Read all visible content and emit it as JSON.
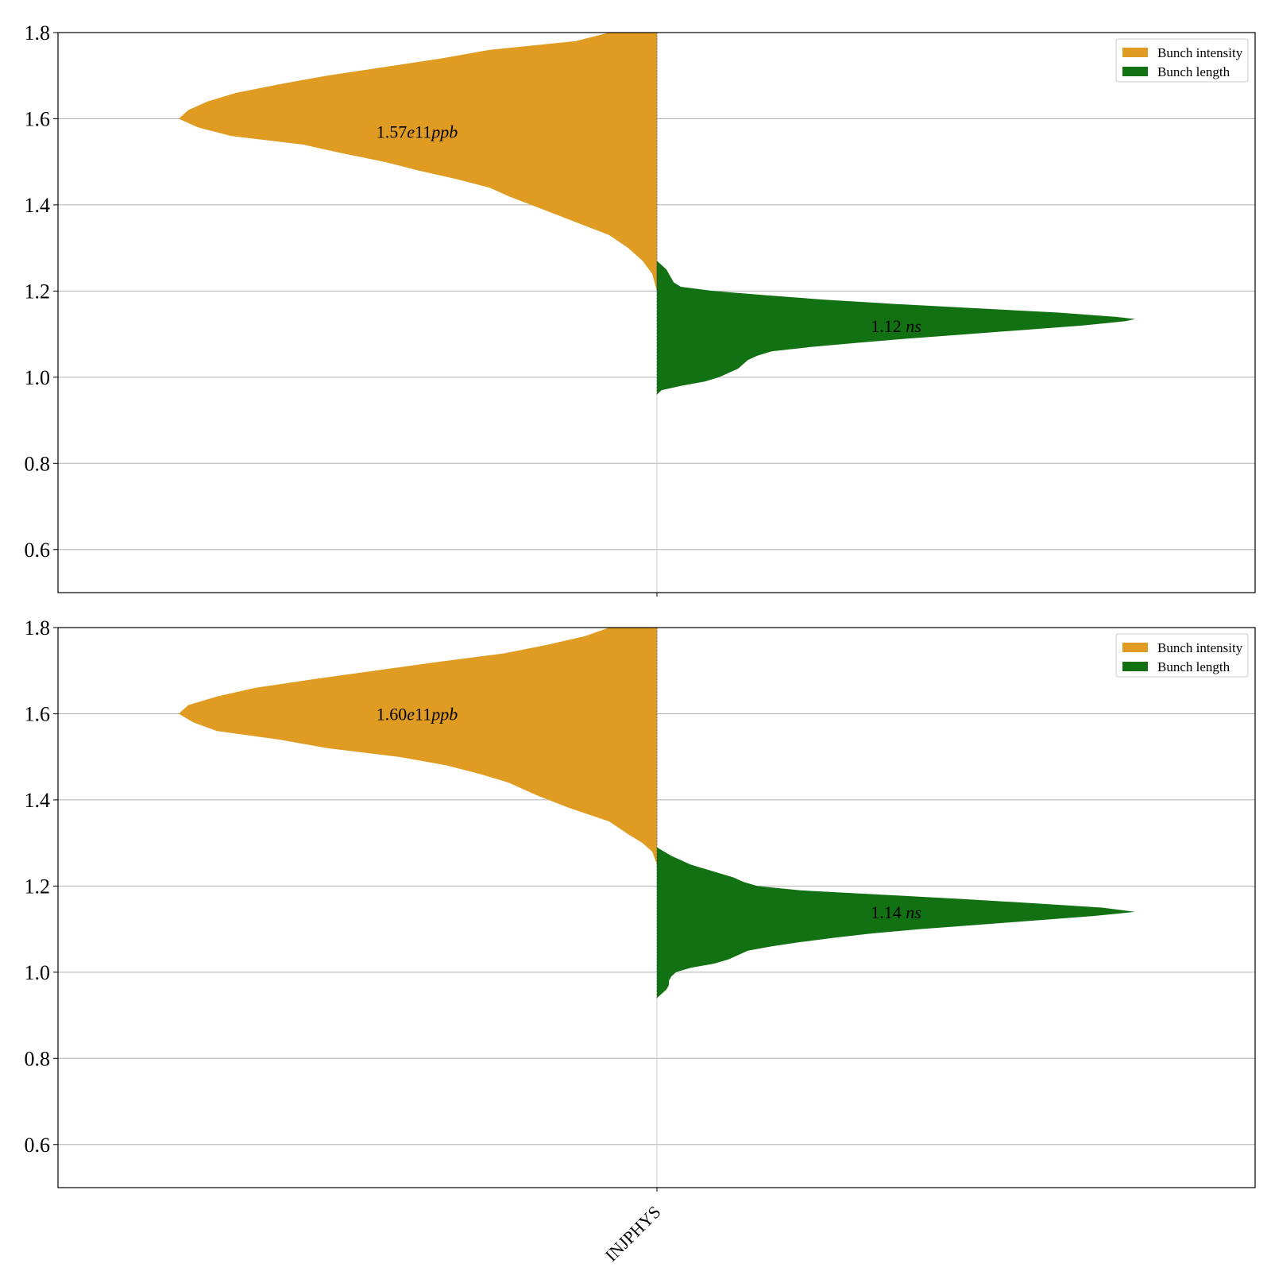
{
  "chart_data": [
    {
      "type": "violin",
      "categories": [
        "INJPHYS"
      ],
      "ylim": [
        0.5,
        1.8
      ],
      "yticks": [
        "0.6",
        "0.8",
        "1.0",
        "1.2",
        "1.4",
        "1.6",
        "1.8"
      ],
      "grid": true,
      "legend": {
        "position": "top-right",
        "entries": [
          "Bunch intensity",
          "Bunch length"
        ]
      },
      "colors": {
        "intensity": "#e09c22",
        "length": "#127112"
      },
      "series": [
        {
          "name": "Bunch intensity",
          "side": "left",
          "annotation": {
            "value": "1.57",
            "exp": "e11",
            "unit": "ppb",
            "y": 1.57
          },
          "profile": [
            [
              1.2,
              0.0
            ],
            [
              1.24,
              0.01
            ],
            [
              1.27,
              0.03
            ],
            [
              1.3,
              0.06
            ],
            [
              1.33,
              0.1
            ],
            [
              1.36,
              0.17
            ],
            [
              1.39,
              0.24
            ],
            [
              1.42,
              0.31
            ],
            [
              1.44,
              0.35
            ],
            [
              1.46,
              0.42
            ],
            [
              1.48,
              0.5
            ],
            [
              1.5,
              0.57
            ],
            [
              1.52,
              0.66
            ],
            [
              1.54,
              0.74
            ],
            [
              1.56,
              0.89
            ],
            [
              1.58,
              0.96
            ],
            [
              1.6,
              1.0
            ],
            [
              1.62,
              0.98
            ],
            [
              1.64,
              0.94
            ],
            [
              1.66,
              0.88
            ],
            [
              1.68,
              0.79
            ],
            [
              1.7,
              0.69
            ],
            [
              1.72,
              0.57
            ],
            [
              1.74,
              0.45
            ],
            [
              1.76,
              0.35
            ],
            [
              1.78,
              0.17
            ],
            [
              1.8,
              0.1
            ]
          ]
        },
        {
          "name": "Bunch length",
          "side": "right",
          "annotation": {
            "value": "1.12",
            "unit": "ns",
            "y": 1.12
          },
          "profile": [
            [
              0.96,
              0.0
            ],
            [
              0.97,
              0.01
            ],
            [
              0.98,
              0.05
            ],
            [
              0.99,
              0.1
            ],
            [
              1.0,
              0.13
            ],
            [
              1.01,
              0.15
            ],
            [
              1.02,
              0.17
            ],
            [
              1.03,
              0.18
            ],
            [
              1.04,
              0.19
            ],
            [
              1.05,
              0.21
            ],
            [
              1.06,
              0.24
            ],
            [
              1.07,
              0.32
            ],
            [
              1.08,
              0.42
            ],
            [
              1.09,
              0.53
            ],
            [
              1.1,
              0.65
            ],
            [
              1.11,
              0.77
            ],
            [
              1.12,
              0.89
            ],
            [
              1.13,
              0.98
            ],
            [
              1.135,
              1.0
            ],
            [
              1.14,
              0.96
            ],
            [
              1.15,
              0.84
            ],
            [
              1.16,
              0.67
            ],
            [
              1.17,
              0.5
            ],
            [
              1.18,
              0.35
            ],
            [
              1.19,
              0.23
            ],
            [
              1.2,
              0.12
            ],
            [
              1.21,
              0.05
            ],
            [
              1.22,
              0.035
            ],
            [
              1.23,
              0.03
            ],
            [
              1.24,
              0.025
            ],
            [
              1.25,
              0.02
            ],
            [
              1.26,
              0.01
            ],
            [
              1.27,
              0.0
            ]
          ]
        }
      ]
    },
    {
      "type": "violin",
      "categories": [
        "INJPHYS"
      ],
      "ylim": [
        0.5,
        1.8
      ],
      "yticks": [
        "0.6",
        "0.8",
        "1.0",
        "1.2",
        "1.4",
        "1.6",
        "1.8"
      ],
      "grid": true,
      "legend": {
        "position": "top-right",
        "entries": [
          "Bunch intensity",
          "Bunch length"
        ]
      },
      "colors": {
        "intensity": "#e09c22",
        "length": "#127112"
      },
      "series": [
        {
          "name": "Bunch intensity",
          "side": "left",
          "annotation": {
            "value": "1.60",
            "exp": "e11",
            "unit": "ppb",
            "y": 1.6
          },
          "profile": [
            [
              1.25,
              0.0
            ],
            [
              1.28,
              0.01
            ],
            [
              1.3,
              0.03
            ],
            [
              1.32,
              0.06
            ],
            [
              1.35,
              0.1
            ],
            [
              1.38,
              0.18
            ],
            [
              1.41,
              0.25
            ],
            [
              1.44,
              0.31
            ],
            [
              1.46,
              0.37
            ],
            [
              1.48,
              0.44
            ],
            [
              1.5,
              0.54
            ],
            [
              1.52,
              0.69
            ],
            [
              1.54,
              0.79
            ],
            [
              1.56,
              0.92
            ],
            [
              1.58,
              0.97
            ],
            [
              1.6,
              1.0
            ],
            [
              1.62,
              0.98
            ],
            [
              1.64,
              0.92
            ],
            [
              1.66,
              0.84
            ],
            [
              1.68,
              0.72
            ],
            [
              1.7,
              0.59
            ],
            [
              1.72,
              0.46
            ],
            [
              1.74,
              0.32
            ],
            [
              1.76,
              0.23
            ],
            [
              1.78,
              0.15
            ],
            [
              1.8,
              0.1
            ]
          ]
        },
        {
          "name": "Bunch length",
          "side": "right",
          "annotation": {
            "value": "1.14",
            "unit": "ns",
            "y": 1.14
          },
          "profile": [
            [
              0.94,
              0.0
            ],
            [
              0.95,
              0.01
            ],
            [
              0.96,
              0.02
            ],
            [
              0.97,
              0.025
            ],
            [
              0.98,
              0.025
            ],
            [
              0.99,
              0.03
            ],
            [
              1.0,
              0.04
            ],
            [
              1.01,
              0.07
            ],
            [
              1.02,
              0.12
            ],
            [
              1.03,
              0.15
            ],
            [
              1.04,
              0.17
            ],
            [
              1.05,
              0.19
            ],
            [
              1.06,
              0.24
            ],
            [
              1.07,
              0.3
            ],
            [
              1.08,
              0.37
            ],
            [
              1.09,
              0.45
            ],
            [
              1.1,
              0.55
            ],
            [
              1.11,
              0.67
            ],
            [
              1.12,
              0.79
            ],
            [
              1.13,
              0.91
            ],
            [
              1.14,
              1.0
            ],
            [
              1.15,
              0.93
            ],
            [
              1.16,
              0.79
            ],
            [
              1.17,
              0.64
            ],
            [
              1.18,
              0.47
            ],
            [
              1.19,
              0.3
            ],
            [
              1.2,
              0.21
            ],
            [
              1.21,
              0.18
            ],
            [
              1.22,
              0.16
            ],
            [
              1.23,
              0.13
            ],
            [
              1.24,
              0.1
            ],
            [
              1.25,
              0.07
            ],
            [
              1.26,
              0.05
            ],
            [
              1.27,
              0.03
            ],
            [
              1.28,
              0.015
            ],
            [
              1.29,
              0.0
            ]
          ]
        }
      ]
    }
  ]
}
